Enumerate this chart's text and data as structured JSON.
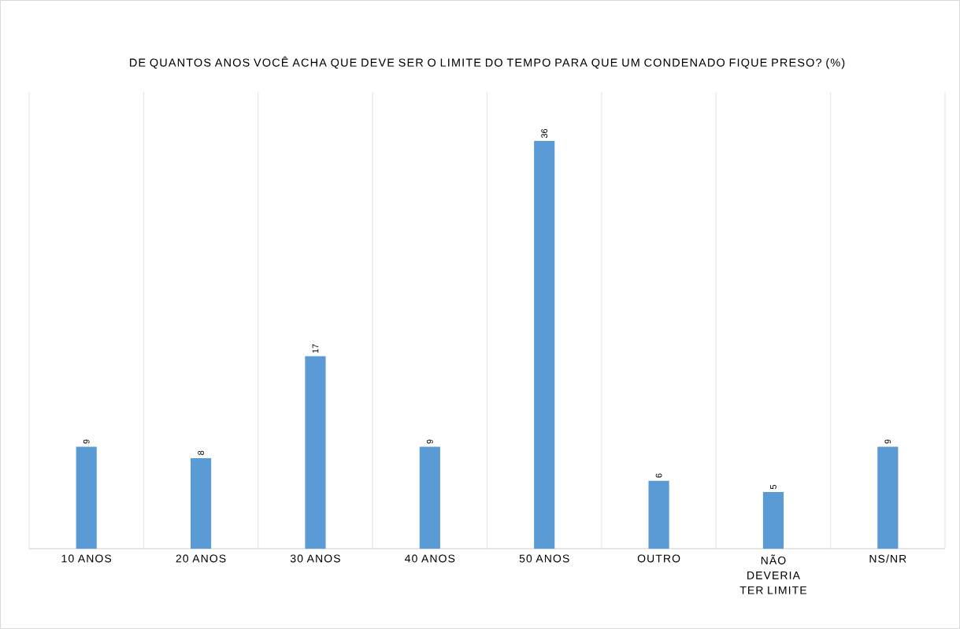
{
  "chart_data": {
    "type": "bar",
    "title": "DE QUANTOS ANOS VOCÊ ACHA QUE DEVE SER O LIMITE DO TEMPO PARA QUE UM CONDENADO FIQUE PRESO? (%)",
    "categories": [
      "10 ANOS",
      "20 ANOS",
      "30 ANOS",
      "40 ANOS",
      "50 ANOS",
      "OUTRO",
      "NÃO DEVERIA TER LIMITE",
      "NS/NR"
    ],
    "values": [
      9,
      8,
      17,
      9,
      36,
      6,
      5,
      9
    ],
    "color": "#5b9bd5",
    "data_labels": true,
    "grid": "x"
  }
}
